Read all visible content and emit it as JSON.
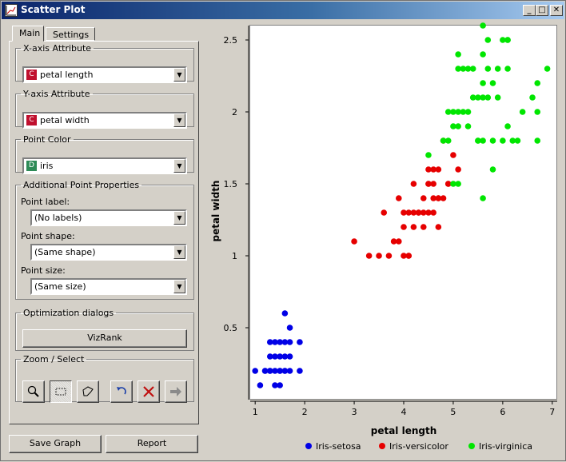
{
  "window": {
    "title": "Scatter Plot",
    "controls": [
      "_",
      "□",
      "✕"
    ]
  },
  "tabs": [
    {
      "label": "Main",
      "active": true
    },
    {
      "label": "Settings",
      "active": false
    }
  ],
  "x_axis_group": {
    "title": "X-axis Attribute",
    "badge": "C",
    "badge_color": "#c0102e",
    "value": "petal length"
  },
  "y_axis_group": {
    "title": "Y-axis Attribute",
    "badge": "C",
    "badge_color": "#c0102e",
    "value": "petal width"
  },
  "color_group": {
    "title": "Point Color",
    "badge": "D",
    "badge_color": "#2e8b57",
    "value": "iris"
  },
  "props_group": {
    "title": "Additional Point Properties",
    "label_caption": "Point label:",
    "label_value": "(No labels)",
    "shape_caption": "Point shape:",
    "shape_value": "(Same shape)",
    "size_caption": "Point size:",
    "size_value": "(Same size)"
  },
  "optim_group": {
    "title": "Optimization dialogs",
    "vizrank_label": "VizRank"
  },
  "zoom_group": {
    "title": "Zoom / Select",
    "tools": [
      "zoom-icon",
      "rectangle-select-icon",
      "polygon-select-icon",
      "undo-icon",
      "remove-selection-icon",
      "send-selection-icon"
    ]
  },
  "footer": {
    "save_label": "Save Graph",
    "report_label": "Report"
  },
  "chart_data": {
    "type": "scatter",
    "xlabel": "petal length",
    "ylabel": "petal width",
    "xlim": [
      0.9,
      7.1
    ],
    "ylim": [
      0.0,
      2.6
    ],
    "xticks": [
      1,
      2,
      3,
      4,
      5,
      6,
      7
    ],
    "yticks": [
      0.5,
      1,
      1.5,
      2,
      2.5
    ],
    "yticklabels": [
      "0.5",
      "1",
      "1.5",
      "2",
      "2.5"
    ],
    "legend_position": "bottom",
    "series": [
      {
        "name": "Iris-setosa",
        "color": "#0000e6",
        "points": [
          [
            1.4,
            0.2
          ],
          [
            1.3,
            0.2
          ],
          [
            1.5,
            0.2
          ],
          [
            1.7,
            0.4
          ],
          [
            1.4,
            0.3
          ],
          [
            1.5,
            0.1
          ],
          [
            1.6,
            0.2
          ],
          [
            1.1,
            0.1
          ],
          [
            1.2,
            0.2
          ],
          [
            1.3,
            0.4
          ],
          [
            1.4,
            0.4
          ],
          [
            1.7,
            0.3
          ],
          [
            1.5,
            0.3
          ],
          [
            1.0,
            0.2
          ],
          [
            1.7,
            0.5
          ],
          [
            1.9,
            0.2
          ],
          [
            1.6,
            0.4
          ],
          [
            1.2,
            0.2
          ],
          [
            1.3,
            0.3
          ],
          [
            1.6,
            0.6
          ],
          [
            1.9,
            0.4
          ],
          [
            1.5,
            0.4
          ],
          [
            1.6,
            0.2
          ],
          [
            1.4,
            0.1
          ],
          [
            1.7,
            0.2
          ],
          [
            1.3,
            0.2
          ],
          [
            1.5,
            0.2
          ],
          [
            1.6,
            0.3
          ]
        ]
      },
      {
        "name": "Iris-versicolor",
        "color": "#e60000",
        "points": [
          [
            4.7,
            1.4
          ],
          [
            4.5,
            1.5
          ],
          [
            4.9,
            1.5
          ],
          [
            4.0,
            1.3
          ],
          [
            4.6,
            1.5
          ],
          [
            3.3,
            1.0
          ],
          [
            3.9,
            1.4
          ],
          [
            3.5,
            1.0
          ],
          [
            4.2,
            1.5
          ],
          [
            4.0,
            1.0
          ],
          [
            4.7,
            1.4
          ],
          [
            3.6,
            1.3
          ],
          [
            4.4,
            1.4
          ],
          [
            4.1,
            1.0
          ],
          [
            4.5,
            1.5
          ],
          [
            3.9,
            1.1
          ],
          [
            4.8,
            1.8
          ],
          [
            4.9,
            1.5
          ],
          [
            4.7,
            1.2
          ],
          [
            4.3,
            1.3
          ],
          [
            4.8,
            1.4
          ],
          [
            5.0,
            1.7
          ],
          [
            3.8,
            1.1
          ],
          [
            3.7,
            1.0
          ],
          [
            5.1,
            1.6
          ],
          [
            4.4,
            1.2
          ],
          [
            4.6,
            1.4
          ],
          [
            4.0,
            1.2
          ],
          [
            3.0,
            1.1
          ],
          [
            4.2,
            1.3
          ],
          [
            4.1,
            1.3
          ],
          [
            4.5,
            1.6
          ],
          [
            4.4,
            1.3
          ],
          [
            4.6,
            1.3
          ],
          [
            4.3,
            1.3
          ],
          [
            4.5,
            1.3
          ],
          [
            4.1,
            1.0
          ],
          [
            4.6,
            1.6
          ],
          [
            4.7,
            1.6
          ],
          [
            4.2,
            1.2
          ]
        ]
      },
      {
        "name": "Iris-virginica",
        "color": "#00e600",
        "points": [
          [
            6.0,
            2.5
          ],
          [
            5.1,
            1.9
          ],
          [
            5.9,
            2.1
          ],
          [
            5.6,
            1.8
          ],
          [
            5.8,
            2.2
          ],
          [
            6.6,
            2.1
          ],
          [
            4.5,
            1.7
          ],
          [
            6.3,
            1.8
          ],
          [
            5.8,
            1.8
          ],
          [
            6.1,
            2.5
          ],
          [
            5.1,
            2.0
          ],
          [
            5.3,
            1.9
          ],
          [
            5.5,
            2.1
          ],
          [
            5.0,
            2.0
          ],
          [
            5.1,
            2.4
          ],
          [
            5.3,
            2.3
          ],
          [
            5.5,
            1.8
          ],
          [
            6.7,
            2.2
          ],
          [
            6.9,
            2.3
          ],
          [
            5.0,
            1.5
          ],
          [
            5.7,
            2.3
          ],
          [
            4.9,
            2.0
          ],
          [
            6.7,
            2.0
          ],
          [
            4.9,
            1.8
          ],
          [
            5.7,
            2.1
          ],
          [
            6.0,
            1.8
          ],
          [
            4.8,
            1.8
          ],
          [
            5.6,
            2.1
          ],
          [
            5.8,
            1.6
          ],
          [
            6.1,
            1.9
          ],
          [
            6.4,
            2.0
          ],
          [
            5.6,
            2.2
          ],
          [
            5.1,
            1.5
          ],
          [
            5.6,
            1.4
          ],
          [
            6.1,
            2.3
          ],
          [
            5.5,
            1.8
          ],
          [
            5.4,
            2.3
          ],
          [
            5.2,
            2.3
          ],
          [
            5.9,
            2.3
          ],
          [
            5.7,
            2.5
          ],
          [
            5.2,
            2.0
          ],
          [
            5.4,
            2.1
          ],
          [
            5.1,
            2.3
          ],
          [
            5.6,
            2.4
          ],
          [
            6.1,
            2.5
          ],
          [
            6.2,
            1.8
          ],
          [
            5.3,
            2.0
          ],
          [
            5.0,
            1.9
          ],
          [
            5.6,
            2.6
          ],
          [
            6.7,
            1.8
          ]
        ]
      }
    ]
  }
}
